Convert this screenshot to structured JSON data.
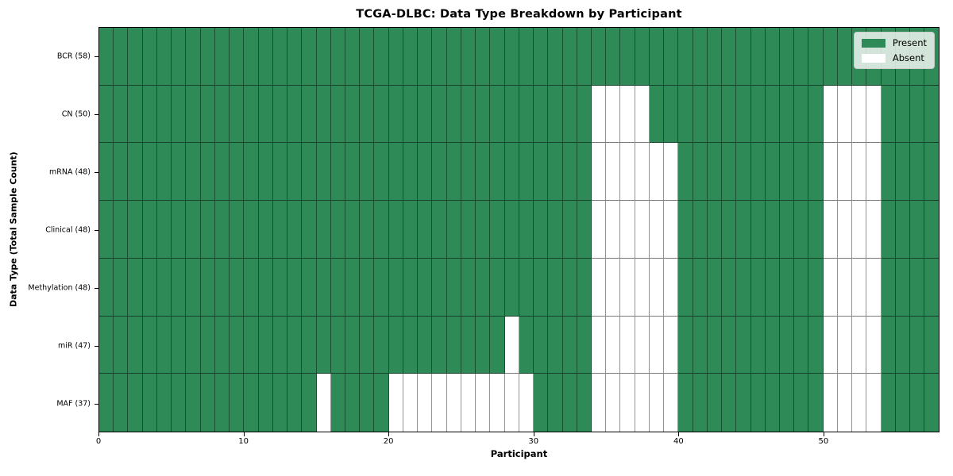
{
  "title": "TCGA-DLBC: Data Type Breakdown by Participant",
  "xlabel": "Participant",
  "ylabel": "Data Type (Total Sample Count)",
  "legend": {
    "items": [
      {
        "label": "Present",
        "color": "#2e8b57",
        "swatch_border": "none"
      },
      {
        "label": "Absent",
        "color": "#ffffff",
        "swatch_border": "none"
      }
    ]
  },
  "chart_data": {
    "type": "heatmap",
    "title": "TCGA-DLBC: Data Type Breakdown by Participant",
    "xlabel": "Participant",
    "ylabel": "Data Type (Total Sample Count)",
    "xlim": [
      0,
      58
    ],
    "n_participants": 58,
    "x_tick_labels": [
      "0",
      "10",
      "20",
      "30",
      "40",
      "50"
    ],
    "x_tick_values": [
      0,
      10,
      20,
      30,
      40,
      50
    ],
    "grid": "cell-edges",
    "legend_position": "upper right",
    "colors": {
      "present": "#2e8b57",
      "absent": "#ffffff",
      "cell_edge": "rgba(0,0,0,0.45)",
      "axis_spine": "#000000"
    },
    "rows": [
      {
        "label": "BCR (58)",
        "data_type": "BCR",
        "total_samples": 58,
        "absent_participants": []
      },
      {
        "label": "CN (50)",
        "data_type": "CN",
        "total_samples": 50,
        "absent_participants": [
          34,
          35,
          36,
          37,
          50,
          51,
          52,
          53
        ]
      },
      {
        "label": "mRNA (48)",
        "data_type": "mRNA",
        "total_samples": 48,
        "absent_participants": [
          34,
          35,
          36,
          37,
          38,
          39,
          50,
          51,
          52,
          53
        ]
      },
      {
        "label": "Clinical (48)",
        "data_type": "Clinical",
        "total_samples": 48,
        "absent_participants": [
          34,
          35,
          36,
          37,
          38,
          39,
          50,
          51,
          52,
          53
        ]
      },
      {
        "label": "Methylation (48)",
        "data_type": "Methylation",
        "total_samples": 48,
        "absent_participants": [
          34,
          35,
          36,
          37,
          38,
          39,
          50,
          51,
          52,
          53
        ]
      },
      {
        "label": "miR (47)",
        "data_type": "miR",
        "total_samples": 47,
        "absent_participants": [
          28,
          34,
          35,
          36,
          37,
          38,
          39,
          50,
          51,
          52,
          53
        ]
      },
      {
        "label": "MAF (37)",
        "data_type": "MAF",
        "total_samples": 37,
        "absent_participants": [
          15,
          20,
          21,
          22,
          23,
          24,
          25,
          26,
          27,
          28,
          29,
          34,
          35,
          36,
          37,
          38,
          39,
          50,
          51,
          52,
          53
        ]
      }
    ]
  }
}
